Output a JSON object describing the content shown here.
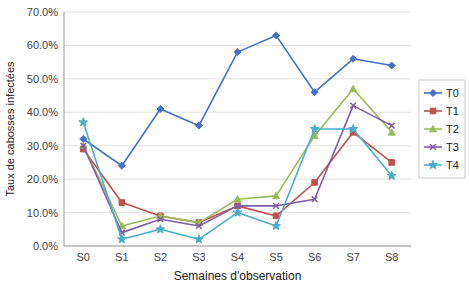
{
  "chart_data": {
    "type": "line",
    "xlabel": "Semaines d'observation",
    "ylabel": "Taux de cabosses infectées",
    "categories": [
      "S0",
      "S1",
      "S2",
      "S3",
      "S4",
      "S5",
      "S6",
      "S7",
      "S8"
    ],
    "series": [
      {
        "name": "T0",
        "color": "#4472C4",
        "marker": "diamond",
        "values": [
          0.32,
          0.24,
          0.41,
          0.36,
          0.58,
          0.63,
          0.46,
          0.56,
          0.54
        ]
      },
      {
        "name": "T1",
        "color": "#C0504D",
        "marker": "square",
        "values": [
          0.29,
          0.13,
          0.09,
          0.07,
          0.12,
          0.09,
          0.19,
          0.34,
          0.25
        ]
      },
      {
        "name": "T2",
        "color": "#9BBB59",
        "marker": "triangle",
        "values": [
          0.3,
          0.06,
          0.09,
          0.07,
          0.14,
          0.15,
          0.33,
          0.47,
          0.34
        ]
      },
      {
        "name": "T3",
        "color": "#7F5FA6",
        "marker": "x",
        "values": [
          0.3,
          0.04,
          0.08,
          0.06,
          0.12,
          0.12,
          0.14,
          0.42,
          0.36
        ]
      },
      {
        "name": "T4",
        "color": "#4AAEC9",
        "marker": "star",
        "values": [
          0.37,
          0.02,
          0.05,
          0.02,
          0.1,
          0.06,
          0.35,
          0.35,
          0.21
        ]
      }
    ],
    "ylim": [
      0.0,
      0.7
    ],
    "yticks": [
      {
        "value": 0.0,
        "label": "0.0%"
      },
      {
        "value": 0.1,
        "label": "10.0%"
      },
      {
        "value": 0.2,
        "label": "20.0%"
      },
      {
        "value": 0.3,
        "label": "30.0%"
      },
      {
        "value": 0.4,
        "label": "40.0%"
      },
      {
        "value": 0.5,
        "label": "50.0%"
      },
      {
        "value": 0.6,
        "label": "60.0%"
      },
      {
        "value": 0.7,
        "label": "70.0%"
      }
    ],
    "grid": true,
    "legend": "right"
  }
}
